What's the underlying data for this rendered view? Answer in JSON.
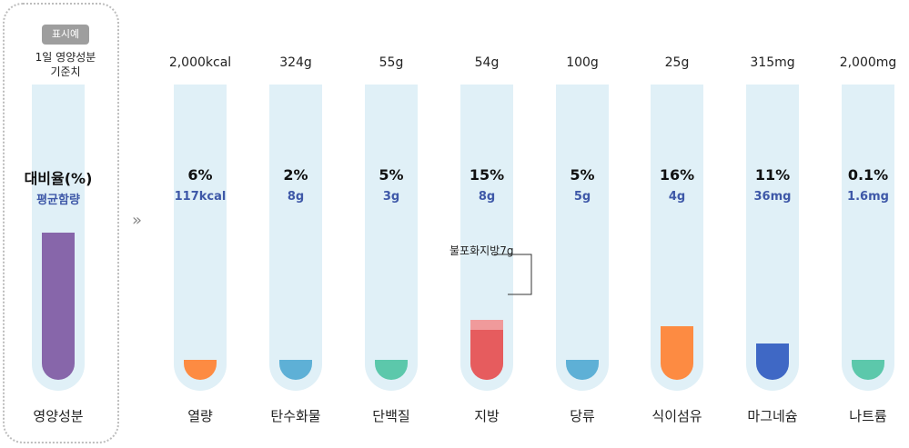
{
  "legend": {
    "tag": "표시예",
    "line1": "1일 영양성분",
    "line2": "기준치",
    "pct_label": "대비율(%)",
    "avg_label": "평균함량",
    "name": "영양성분",
    "color": "#8766aa",
    "fill_fraction": 0.53
  },
  "arrow_glyph": "»",
  "colors": {
    "tube": "#e0f0f7",
    "avg_text": "#3e58a8"
  },
  "chart_data": {
    "type": "bar",
    "categories": [
      "열량",
      "탄수화물",
      "단백질",
      "지방",
      "당류",
      "식이섬유",
      "마그네슘",
      "나트륨"
    ],
    "daily_values": [
      "2,000kcal",
      "324g",
      "55g",
      "54g",
      "100g",
      "25g",
      "315mg",
      "2,000mg"
    ],
    "percent_labels": [
      "6%",
      "2%",
      "5%",
      "15%",
      "5%",
      "16%",
      "11%",
      "0.1%"
    ],
    "amount_labels": [
      "117kcal",
      "8g",
      "3g",
      "8g",
      "5g",
      "4g",
      "36mg",
      "1.6mg"
    ],
    "values": [
      6,
      2,
      5,
      15,
      5,
      16,
      11,
      0.1
    ],
    "colors": [
      "#fd8b42",
      "#5eb0d6",
      "#5cc8ab",
      "#e65c5e",
      "#5eb0d6",
      "#fd8b42",
      "#3f68c5",
      "#5cc8ab"
    ],
    "sub_segment": {
      "category": "지방",
      "label": "불포화지방7g",
      "color": "#f09a9b"
    }
  }
}
